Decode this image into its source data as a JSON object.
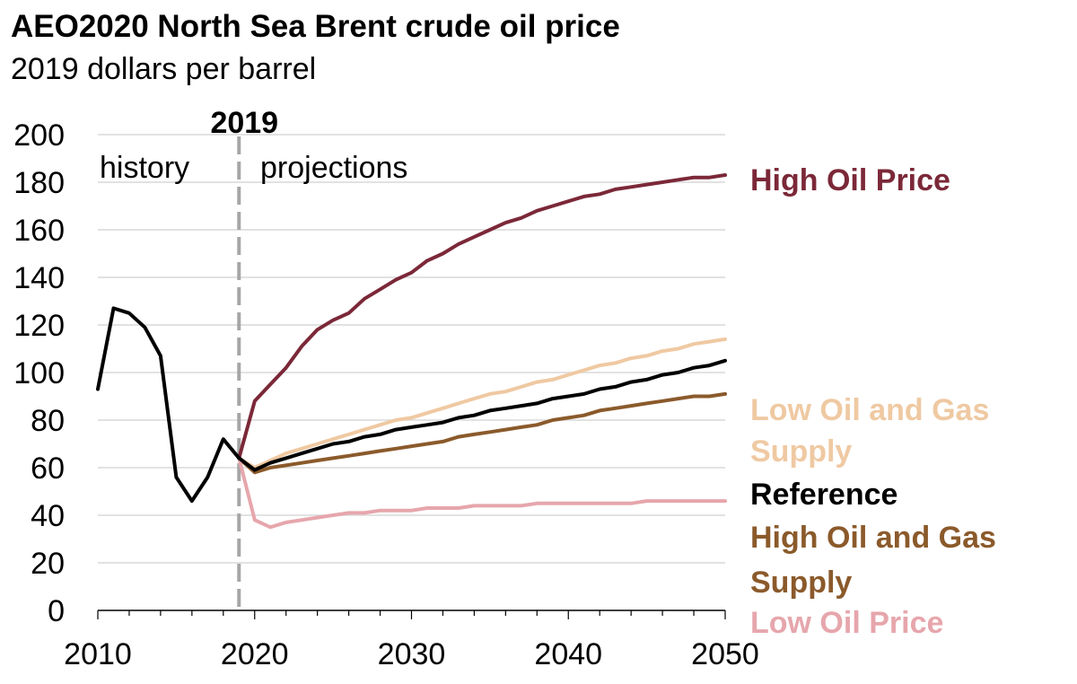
{
  "chart_data": {
    "type": "line",
    "title": "AEO2020 North Sea Brent crude oil price",
    "subtitle": "2019 dollars per barrel",
    "xlabel": "",
    "ylabel": "",
    "xlim": [
      2010,
      2050
    ],
    "ylim": [
      0,
      200
    ],
    "x_ticks": [
      2010,
      2020,
      2030,
      2040,
      2050
    ],
    "y_ticks": [
      0,
      20,
      40,
      60,
      80,
      100,
      120,
      140,
      160,
      180,
      200
    ],
    "grid": "horizontal",
    "legend": "right",
    "divider": {
      "x": 2019,
      "label": "2019",
      "left_label": "history",
      "right_label": "projections"
    },
    "history": {
      "color": "#000000",
      "x": [
        2010,
        2011,
        2012,
        2013,
        2014,
        2015,
        2016,
        2017,
        2018,
        2019
      ],
      "y": [
        93,
        127,
        125,
        119,
        107,
        56,
        46,
        56,
        72,
        64
      ]
    },
    "series": [
      {
        "name": "High Oil Price",
        "color": "#7B2838",
        "x": [
          2019,
          2020,
          2021,
          2022,
          2023,
          2024,
          2025,
          2026,
          2027,
          2028,
          2029,
          2030,
          2031,
          2032,
          2033,
          2034,
          2035,
          2036,
          2037,
          2038,
          2039,
          2040,
          2041,
          2042,
          2043,
          2044,
          2045,
          2046,
          2047,
          2048,
          2049,
          2050
        ],
        "y": [
          64,
          88,
          95,
          102,
          111,
          118,
          122,
          125,
          131,
          135,
          139,
          142,
          147,
          150,
          154,
          157,
          160,
          163,
          165,
          168,
          170,
          172,
          174,
          175,
          177,
          178,
          179,
          180,
          181,
          182,
          182,
          183
        ]
      },
      {
        "name": "Low Oil and Gas Supply",
        "color": "#EFC9A2",
        "x": [
          2019,
          2020,
          2021,
          2022,
          2023,
          2024,
          2025,
          2026,
          2027,
          2028,
          2029,
          2030,
          2031,
          2032,
          2033,
          2034,
          2035,
          2036,
          2037,
          2038,
          2039,
          2040,
          2041,
          2042,
          2043,
          2044,
          2045,
          2046,
          2047,
          2048,
          2049,
          2050
        ],
        "y": [
          64,
          60,
          63,
          66,
          68,
          70,
          72,
          74,
          76,
          78,
          80,
          81,
          83,
          85,
          87,
          89,
          91,
          92,
          94,
          96,
          97,
          99,
          101,
          103,
          104,
          106,
          107,
          109,
          110,
          112,
          113,
          114
        ]
      },
      {
        "name": "Reference",
        "color": "#000000",
        "x": [
          2019,
          2020,
          2021,
          2022,
          2023,
          2024,
          2025,
          2026,
          2027,
          2028,
          2029,
          2030,
          2031,
          2032,
          2033,
          2034,
          2035,
          2036,
          2037,
          2038,
          2039,
          2040,
          2041,
          2042,
          2043,
          2044,
          2045,
          2046,
          2047,
          2048,
          2049,
          2050
        ],
        "y": [
          64,
          59,
          62,
          64,
          66,
          68,
          70,
          71,
          73,
          74,
          76,
          77,
          78,
          79,
          81,
          82,
          84,
          85,
          86,
          87,
          89,
          90,
          91,
          93,
          94,
          96,
          97,
          99,
          100,
          102,
          103,
          105
        ]
      },
      {
        "name": "High Oil and Gas Supply",
        "color": "#8B5A2B",
        "x": [
          2019,
          2020,
          2021,
          2022,
          2023,
          2024,
          2025,
          2026,
          2027,
          2028,
          2029,
          2030,
          2031,
          2032,
          2033,
          2034,
          2035,
          2036,
          2037,
          2038,
          2039,
          2040,
          2041,
          2042,
          2043,
          2044,
          2045,
          2046,
          2047,
          2048,
          2049,
          2050
        ],
        "y": [
          64,
          58,
          60,
          61,
          62,
          63,
          64,
          65,
          66,
          67,
          68,
          69,
          70,
          71,
          73,
          74,
          75,
          76,
          77,
          78,
          80,
          81,
          82,
          84,
          85,
          86,
          87,
          88,
          89,
          90,
          90,
          91
        ]
      },
      {
        "name": "Low Oil Price",
        "color": "#E6A6AC",
        "x": [
          2019,
          2020,
          2021,
          2022,
          2023,
          2024,
          2025,
          2026,
          2027,
          2028,
          2029,
          2030,
          2031,
          2032,
          2033,
          2034,
          2035,
          2036,
          2037,
          2038,
          2039,
          2040,
          2041,
          2042,
          2043,
          2044,
          2045,
          2046,
          2047,
          2048,
          2049,
          2050
        ],
        "y": [
          64,
          38,
          35,
          37,
          38,
          39,
          40,
          41,
          41,
          42,
          42,
          42,
          43,
          43,
          43,
          44,
          44,
          44,
          44,
          45,
          45,
          45,
          45,
          45,
          45,
          45,
          46,
          46,
          46,
          46,
          46,
          46
        ]
      }
    ],
    "legend_entries": [
      {
        "lines": [
          "High Oil Price"
        ],
        "color": "#7B2838"
      },
      {
        "lines": [
          "Low Oil and Gas",
          "Supply"
        ],
        "color": "#EFC9A2"
      },
      {
        "lines": [
          "Reference"
        ],
        "color": "#000000"
      },
      {
        "lines": [
          "High Oil and Gas",
          "Supply"
        ],
        "color": "#8B5A2B"
      },
      {
        "lines": [
          "Low Oil Price"
        ],
        "color": "#E6A6AC"
      }
    ]
  }
}
